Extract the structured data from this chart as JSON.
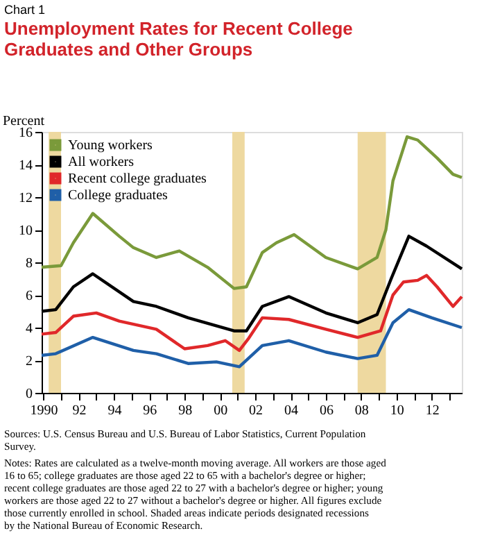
{
  "chart_data": {
    "type": "line",
    "title": "Unemployment Rates for Recent College Graduates and Other Groups",
    "subtitle": "Chart 1",
    "ylabel": "Percent",
    "annotations": [
      "Sources: U.S. Census Bureau and U.S. Bureau of Labor Statistics, Current Population Survey.",
      "Notes: Rates are calculated as a twelve-month moving average. All workers are those aged 16 to 65; college graduates are those aged 22 to 65 with a bachelor's degree or higher; recent college graduates are those aged 22 to 27 with a bachelor's degree or higher; young workers are those aged 22 to 27 without a bachelor's degree or higher. All figures exclude those currently enrolled in school.  Shaded areas indicate periods designated recessions by the National Bureau of Economic Research."
    ],
    "xlim": [
      1989.9,
      2013.7
    ],
    "xticks": [
      {
        "value": 1990,
        "label": "1990"
      },
      {
        "value": 1991,
        "label": null
      },
      {
        "value": 1992,
        "label": "92"
      },
      {
        "value": 1993,
        "label": null
      },
      {
        "value": 1994,
        "label": "94"
      },
      {
        "value": 1995,
        "label": null
      },
      {
        "value": 1996,
        "label": "96"
      },
      {
        "value": 1997,
        "label": null
      },
      {
        "value": 1998,
        "label": "98"
      },
      {
        "value": 1999,
        "label": null
      },
      {
        "value": 2000,
        "label": "00"
      },
      {
        "value": 2001,
        "label": null
      },
      {
        "value": 2002,
        "label": "02"
      },
      {
        "value": 2003,
        "label": null
      },
      {
        "value": 2004,
        "label": "04"
      },
      {
        "value": 2005,
        "label": null
      },
      {
        "value": 2006,
        "label": "06"
      },
      {
        "value": 2007,
        "label": null
      },
      {
        "value": 2008,
        "label": "08"
      },
      {
        "value": 2009,
        "label": null
      },
      {
        "value": 2010,
        "label": "10"
      },
      {
        "value": 2011,
        "label": null
      },
      {
        "value": 2012,
        "label": "12"
      },
      {
        "value": 2013,
        "label": null
      }
    ],
    "ylim": [
      0,
      16
    ],
    "yticks": [
      0,
      2,
      4,
      6,
      8,
      10,
      12,
      14,
      16
    ],
    "grid": false,
    "legend": "top left",
    "marker": "none",
    "line_style": "solid",
    "bands": [
      {
        "axis": "x",
        "from": 1990.3,
        "to": 1991.0,
        "color": "#eed9a0"
      },
      {
        "axis": "x",
        "from": 2000.7,
        "to": 2001.4,
        "color": "#eed9a0"
      },
      {
        "axis": "x",
        "from": 2007.8,
        "to": 2009.4,
        "color": "#eed9a0"
      }
    ],
    "series": [
      {
        "name": "Young workers",
        "color": "#7a9a3a",
        "x": [
          1989.9,
          1991.0,
          1991.7,
          1992.8,
          1994.3,
          1995.1,
          1996.4,
          1997.7,
          1999.3,
          2000.8,
          2001.5,
          2002.4,
          2003.2,
          2004.2,
          2006.0,
          2007.8,
          2008.9,
          2009.4,
          2009.8,
          2010.6,
          2011.2,
          2012.3,
          2013.2,
          2013.7
        ],
        "values": [
          7.7,
          7.8,
          9.2,
          11.0,
          9.6,
          8.9,
          8.3,
          8.7,
          7.7,
          6.4,
          6.5,
          8.6,
          9.2,
          9.7,
          8.3,
          7.6,
          8.3,
          10.0,
          13.0,
          15.7,
          15.5,
          14.4,
          13.4,
          13.2
        ]
      },
      {
        "name": "All workers",
        "color": "#000000",
        "x": [
          1989.9,
          1990.7,
          1991.7,
          1992.8,
          1995.1,
          1996.4,
          1998.2,
          2000.8,
          2001.5,
          2002.4,
          2003.9,
          2006.0,
          2007.8,
          2008.9,
          2009.7,
          2010.7,
          2011.7,
          2013.7
        ],
        "values": [
          5.0,
          5.1,
          6.5,
          7.3,
          5.6,
          5.3,
          4.6,
          3.8,
          3.8,
          5.3,
          5.9,
          4.9,
          4.3,
          4.8,
          7.0,
          9.6,
          9.0,
          7.6
        ]
      },
      {
        "name": "Recent college graduates",
        "color": "#e0282a",
        "x": [
          1989.9,
          1990.7,
          1991.7,
          1993.0,
          1994.3,
          1996.4,
          1998.0,
          1999.3,
          2000.3,
          2001.1,
          2001.6,
          2002.4,
          2003.9,
          2006.0,
          2007.8,
          2009.1,
          2009.8,
          2010.4,
          2011.2,
          2011.7,
          2012.3,
          2013.2,
          2013.7
        ],
        "values": [
          3.6,
          3.7,
          4.7,
          4.9,
          4.4,
          3.9,
          2.7,
          2.9,
          3.2,
          2.6,
          3.3,
          4.6,
          4.5,
          3.9,
          3.4,
          3.8,
          6.0,
          6.8,
          6.9,
          7.2,
          6.5,
          5.3,
          5.9
        ]
      },
      {
        "name": "College graduates",
        "color": "#1f5fa8",
        "x": [
          1989.9,
          1990.7,
          1992.8,
          1995.1,
          1996.4,
          1998.2,
          1999.8,
          2001.1,
          2002.4,
          2003.9,
          2006.0,
          2007.8,
          2008.9,
          2009.8,
          2010.7,
          2012.0,
          2013.7
        ],
        "values": [
          2.3,
          2.4,
          3.4,
          2.6,
          2.4,
          1.8,
          1.9,
          1.6,
          2.9,
          3.2,
          2.5,
          2.1,
          2.3,
          4.3,
          5.1,
          4.6,
          4.0
        ]
      }
    ]
  }
}
